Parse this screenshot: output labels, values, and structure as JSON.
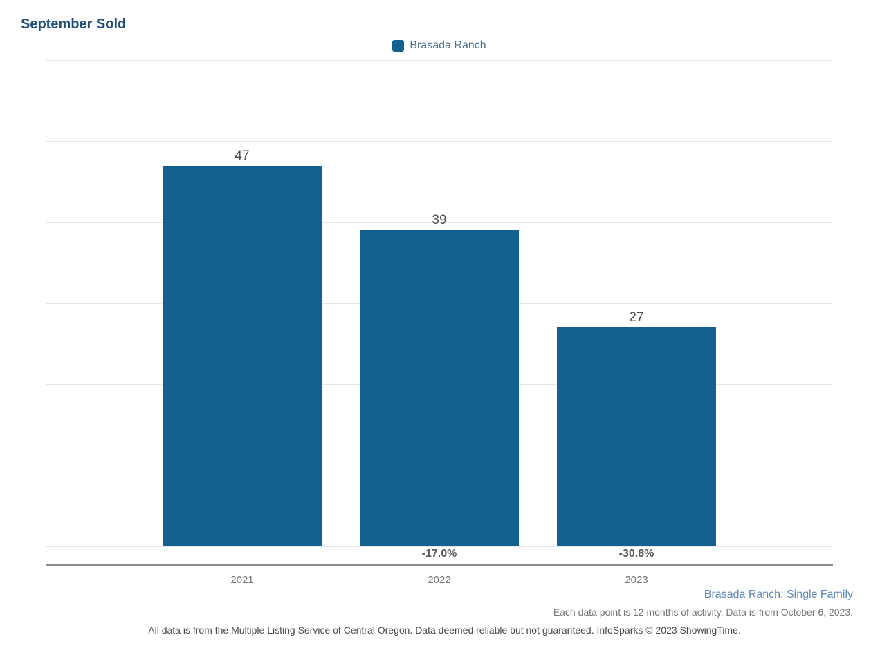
{
  "title": "September Sold",
  "legend": {
    "label": "Brasada Ranch",
    "swatch_color": "#12618f"
  },
  "chart_data": {
    "type": "bar",
    "title": "September Sold",
    "categories": [
      "2021",
      "2022",
      "2023"
    ],
    "series": [
      {
        "name": "Brasada Ranch",
        "values": [
          47,
          39,
          27
        ]
      }
    ],
    "bar_value_labels": [
      "47",
      "39",
      "27"
    ],
    "pct_change_labels": [
      "",
      "-17.0%",
      "-30.8%"
    ],
    "ylim": [
      0,
      60
    ],
    "yticks": [
      0,
      10,
      20,
      30,
      40,
      50,
      60
    ],
    "xlabel": "",
    "ylabel": "",
    "grid": "horizontal",
    "legend_position": "top-center",
    "bar_color": "#12618f"
  },
  "footnotes": {
    "series_note": "Brasada Ranch: Single Family",
    "data_note": "Each data point is 12 months of activity. Data is from October 6, 2023.",
    "disclaimer": "All data is from the Multiple Listing Service of Central Oregon. Data deemed reliable but not guaranteed. InfoSparks © 2023 ShowingTime."
  },
  "colors": {
    "title": "#1f4e79",
    "bar": "#12618f",
    "gridline": "#e6e6e6",
    "axis_line": "#8e8e8e",
    "value_label": "#4f4f4f",
    "series_note": "#5c88bc"
  }
}
